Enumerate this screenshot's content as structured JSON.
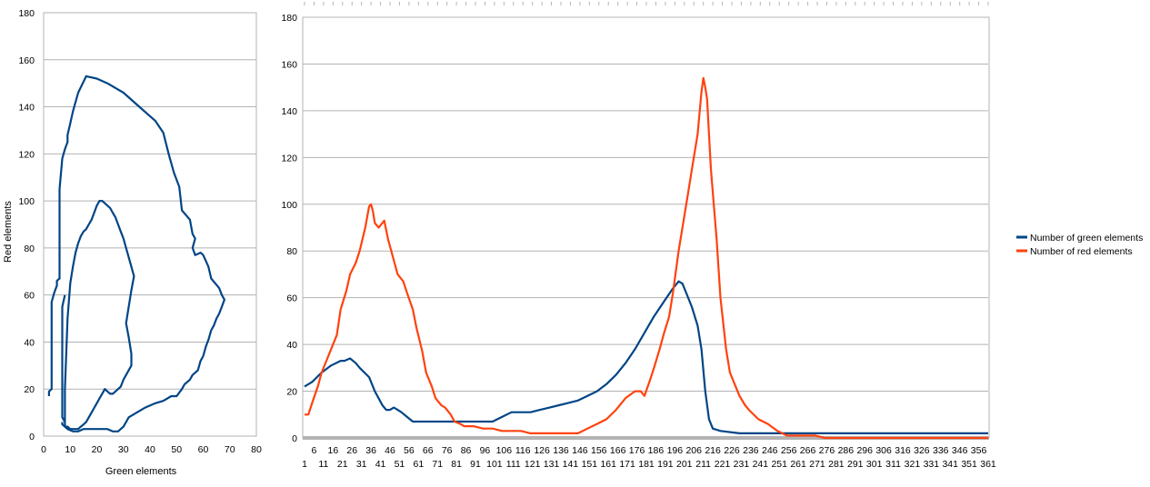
{
  "chart_data": [
    {
      "type": "line",
      "title": "",
      "xlabel": "Green elements",
      "ylabel": "Red elements",
      "xlim": [
        0,
        80
      ],
      "ylim": [
        0,
        180
      ],
      "xticks": [
        0,
        10,
        20,
        30,
        40,
        50,
        60,
        70,
        80
      ],
      "yticks": [
        0,
        20,
        40,
        60,
        80,
        100,
        120,
        140,
        160,
        180
      ],
      "grid": "horizontal",
      "line_color": "#004586",
      "series": [
        {
          "x": [
            2,
            2,
            3,
            3,
            4,
            5,
            5,
            6,
            6,
            7,
            8,
            9,
            9,
            10,
            11,
            13,
            16,
            20,
            24,
            30,
            35,
            42,
            45,
            47,
            49,
            51,
            52,
            55,
            56,
            57,
            56,
            57,
            59,
            60,
            62,
            63,
            66,
            67,
            68,
            67,
            66,
            65,
            64,
            63,
            62,
            61,
            60,
            59,
            58,
            56,
            55,
            53,
            52,
            50,
            48,
            45,
            42,
            38,
            35,
            32,
            31,
            30,
            29,
            28,
            27,
            26,
            24,
            22,
            20,
            18,
            15,
            13,
            11,
            9,
            8,
            8,
            7,
            7,
            7,
            8
          ],
          "y": [
            17,
            19,
            20,
            57,
            61,
            64,
            66,
            67,
            105,
            118,
            122,
            125,
            128,
            133,
            138,
            146,
            153,
            152,
            150,
            146,
            141,
            134,
            129,
            120,
            112,
            106,
            96,
            92,
            86,
            84,
            80,
            77,
            78,
            77,
            72,
            67,
            63,
            60,
            58,
            55,
            52,
            50,
            47,
            45,
            41,
            38,
            34,
            32,
            28,
            26,
            24,
            22,
            20,
            17,
            17,
            15,
            14,
            12,
            10,
            8,
            6,
            4,
            3,
            2,
            2,
            2,
            3,
            3,
            3,
            3,
            3,
            2,
            2,
            3,
            4,
            6,
            8,
            20,
            55,
            60
          ]
        },
        {
          "x": [
            7,
            7,
            8,
            9,
            10,
            11,
            12,
            13,
            14,
            15,
            16,
            17,
            18,
            19,
            20,
            21,
            22,
            23,
            24,
            25,
            26,
            27,
            28,
            29,
            30,
            31,
            32,
            33,
            33,
            32,
            31,
            32,
            33,
            34,
            33,
            32,
            31,
            30,
            29,
            28,
            27,
            26,
            25,
            24,
            23,
            22,
            21,
            20,
            19,
            18,
            17,
            16,
            15,
            14,
            13,
            12,
            11,
            10,
            9,
            8,
            8
          ],
          "y": [
            6,
            5,
            4,
            4,
            3,
            3,
            3,
            3,
            4,
            5,
            6,
            8,
            10,
            12,
            14,
            16,
            18,
            20,
            19,
            18,
            18,
            19,
            20,
            21,
            24,
            26,
            28,
            30,
            35,
            42,
            48,
            55,
            62,
            68,
            72,
            76,
            80,
            84,
            87,
            90,
            93,
            95,
            97,
            98,
            99,
            100,
            100,
            98,
            95,
            92,
            90,
            88,
            87,
            85,
            82,
            78,
            72,
            65,
            50,
            20,
            6
          ]
        }
      ]
    },
    {
      "type": "line",
      "title": "",
      "xlabel": "",
      "ylabel": "",
      "xlim": [
        1,
        361
      ],
      "ylim": [
        0,
        180
      ],
      "yticks": [
        0,
        20,
        40,
        60,
        80,
        100,
        120,
        140,
        160,
        180
      ],
      "xticks_odd": [
        1,
        11,
        21,
        31,
        41,
        51,
        61,
        71,
        81,
        91,
        101,
        111,
        121,
        131,
        141,
        151,
        161,
        171,
        181,
        191,
        201,
        211,
        221,
        231,
        241,
        251,
        261,
        271,
        281,
        291,
        301,
        311,
        321,
        331,
        341,
        351,
        361
      ],
      "xticks_even": [
        6,
        16,
        26,
        36,
        46,
        56,
        66,
        76,
        86,
        96,
        106,
        116,
        126,
        136,
        146,
        156,
        166,
        176,
        186,
        196,
        206,
        216,
        226,
        236,
        246,
        256,
        266,
        276,
        286,
        296,
        306,
        316,
        326,
        336,
        346,
        356
      ],
      "grid": "horizontal",
      "legend": "right",
      "series": [
        {
          "name": "Number of green elements",
          "color": "#004586",
          "x": [
            1,
            5,
            10,
            15,
            20,
            22,
            25,
            28,
            30,
            35,
            38,
            40,
            42,
            44,
            46,
            48,
            50,
            52,
            55,
            58,
            60,
            65,
            70,
            80,
            90,
            100,
            105,
            110,
            115,
            120,
            125,
            130,
            135,
            140,
            145,
            150,
            155,
            160,
            165,
            170,
            175,
            180,
            185,
            190,
            195,
            198,
            200,
            202,
            205,
            208,
            210,
            212,
            214,
            216,
            220,
            230,
            240,
            250,
            260,
            270,
            280,
            290,
            300,
            310,
            320,
            330,
            340,
            350,
            361
          ],
          "y": [
            22,
            24,
            28,
            31,
            33,
            33,
            34,
            32,
            30,
            26,
            20,
            17,
            14,
            12,
            12,
            13,
            12,
            11,
            9,
            7,
            7,
            7,
            7,
            7,
            7,
            7,
            9,
            11,
            11,
            11,
            12,
            13,
            14,
            15,
            16,
            18,
            20,
            23,
            27,
            32,
            38,
            45,
            52,
            58,
            64,
            67,
            66,
            62,
            56,
            48,
            38,
            20,
            8,
            4,
            3,
            2,
            2,
            2,
            2,
            2,
            2,
            2,
            2,
            2,
            2,
            2,
            2,
            2,
            2
          ]
        },
        {
          "name": "Number of red elements",
          "color": "#ff420e",
          "x": [
            1,
            3,
            5,
            8,
            10,
            13,
            15,
            18,
            20,
            23,
            25,
            28,
            30,
            33,
            35,
            36,
            37,
            38,
            40,
            42,
            43,
            45,
            48,
            50,
            53,
            55,
            58,
            60,
            63,
            65,
            68,
            70,
            73,
            75,
            78,
            80,
            83,
            85,
            88,
            90,
            95,
            100,
            105,
            110,
            115,
            120,
            125,
            130,
            135,
            140,
            145,
            150,
            155,
            160,
            165,
            170,
            175,
            178,
            180,
            183,
            185,
            188,
            190,
            193,
            195,
            198,
            200,
            203,
            205,
            208,
            210,
            211,
            212,
            213,
            215,
            218,
            220,
            223,
            225,
            228,
            230,
            233,
            235,
            240,
            245,
            250,
            255,
            260,
            265,
            270,
            275,
            280,
            290,
            300,
            310,
            320,
            330,
            340,
            350,
            361
          ],
          "y": [
            10,
            10,
            15,
            22,
            28,
            34,
            38,
            44,
            55,
            63,
            70,
            75,
            80,
            90,
            99,
            100,
            97,
            92,
            90,
            92,
            93,
            85,
            76,
            70,
            67,
            62,
            55,
            47,
            37,
            28,
            22,
            17,
            14,
            13,
            10,
            7,
            6,
            5,
            5,
            5,
            4,
            4,
            3,
            3,
            3,
            2,
            2,
            2,
            2,
            2,
            2,
            4,
            6,
            8,
            12,
            17,
            20,
            20,
            18,
            25,
            30,
            38,
            44,
            52,
            62,
            80,
            90,
            105,
            115,
            130,
            148,
            154,
            150,
            145,
            115,
            85,
            60,
            38,
            28,
            22,
            18,
            14,
            12,
            8,
            6,
            3,
            1,
            1,
            1,
            1,
            0,
            0,
            0,
            0,
            0,
            0,
            0,
            0,
            0,
            0
          ]
        }
      ]
    }
  ]
}
